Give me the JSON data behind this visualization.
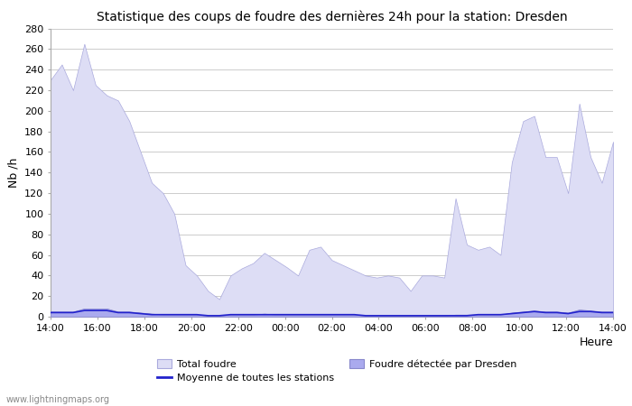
{
  "title": "Statistique des coups de foudre des dernières 24h pour la station: Dresden",
  "xlabel": "Heure",
  "ylabel": "Nb /h",
  "ylim": [
    0,
    280
  ],
  "yticks": [
    0,
    20,
    40,
    60,
    80,
    100,
    120,
    140,
    160,
    180,
    200,
    220,
    240,
    260,
    280
  ],
  "xtick_labels": [
    "14:00",
    "16:00",
    "18:00",
    "20:00",
    "22:00",
    "00:00",
    "02:00",
    "04:00",
    "06:00",
    "08:00",
    "10:00",
    "12:00",
    "14:00"
  ],
  "bg_color": "#ffffff",
  "grid_color": "#cccccc",
  "fill_total_color": "#ddddf5",
  "fill_total_edge": "#aaaadd",
  "fill_dresden_color": "#aaaaee",
  "fill_dresden_edge": "#8888cc",
  "line_mean_color": "#2222cc",
  "watermark": "www.lightningmaps.org",
  "total_foudre": [
    230,
    245,
    220,
    265,
    225,
    215,
    210,
    190,
    160,
    130,
    120,
    100,
    50,
    40,
    25,
    17,
    40,
    47,
    52,
    62,
    55,
    48,
    40,
    65,
    68,
    55,
    50,
    45,
    40,
    38,
    40,
    38,
    25,
    40,
    40,
    38,
    115,
    70,
    65,
    68,
    60,
    150,
    190,
    195,
    155,
    155,
    120,
    207,
    155,
    130,
    170
  ],
  "dresden_foudre": [
    5,
    5,
    5,
    8,
    8,
    8,
    5,
    5,
    4,
    3,
    2,
    2,
    2,
    2,
    1,
    1,
    2,
    2,
    2,
    3,
    2,
    2,
    2,
    2,
    2,
    2,
    2,
    2,
    1,
    1,
    1,
    1,
    1,
    1,
    1,
    1,
    2,
    2,
    2,
    2,
    2,
    4,
    5,
    6,
    5,
    5,
    4,
    7,
    6,
    5,
    5
  ],
  "mean_stations": [
    4,
    4,
    4,
    6,
    6,
    6,
    4,
    4,
    3,
    2,
    2,
    2,
    2,
    2,
    1,
    1,
    2,
    2,
    2,
    2,
    2,
    2,
    2,
    2,
    2,
    2,
    2,
    2,
    1,
    1,
    1,
    1,
    1,
    1,
    1,
    1,
    1,
    1,
    2,
    2,
    2,
    3,
    4,
    5,
    4,
    4,
    3,
    5,
    5,
    4,
    4
  ],
  "n_points": 51,
  "legend_total": "Total foudre",
  "legend_mean": "Moyenne de toutes les stations",
  "legend_dresden": "Foudre détectée par Dresden"
}
